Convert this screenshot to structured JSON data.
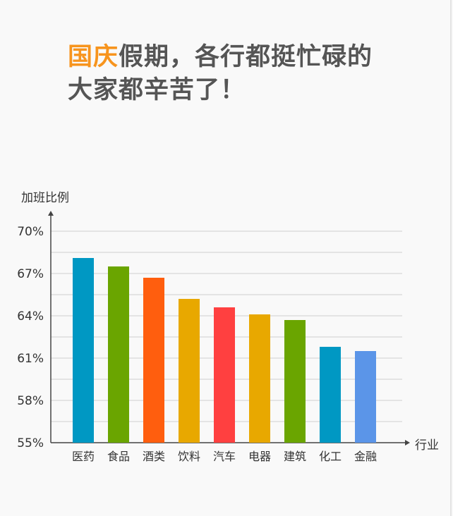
{
  "headline": {
    "highlight": "国庆",
    "line1_rest": "假期，各行都挺忙碌的",
    "line2": "大家都辛苦了！"
  },
  "colors": {
    "highlight": "#f7941d",
    "headline_text": "#555555"
  },
  "chart_data": {
    "type": "bar",
    "ylabel": "加班比例",
    "xlabel": "行业",
    "ylim": [
      55,
      70
    ],
    "yticks": [
      55,
      58,
      61,
      64,
      67,
      70
    ],
    "ytick_labels": [
      "55%",
      "58%",
      "61%",
      "64%",
      "67%",
      "70%"
    ],
    "categories": [
      "医药",
      "食品",
      "酒类",
      "饮料",
      "汽车",
      "电器",
      "建筑",
      "化工",
      "金融"
    ],
    "values": [
      68.1,
      67.5,
      66.7,
      65.2,
      64.6,
      64.1,
      63.7,
      61.8,
      61.5
    ],
    "bar_colors": [
      "#0098c3",
      "#6aa500",
      "#ff5e0e",
      "#e8a800",
      "#ff4040",
      "#e8a800",
      "#6aa500",
      "#0098c3",
      "#5b95e8"
    ],
    "grid": true
  }
}
